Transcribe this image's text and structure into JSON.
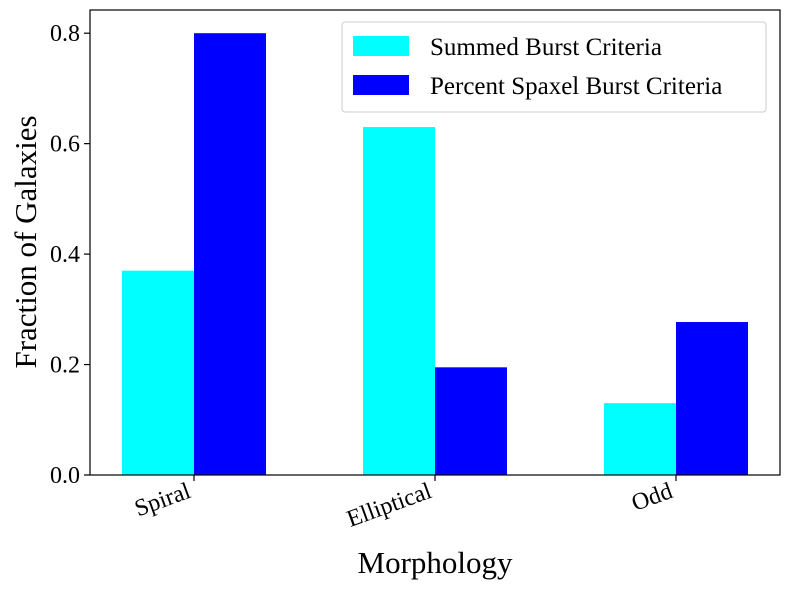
{
  "chart_data": {
    "type": "bar",
    "categories": [
      "Spiral",
      "Elliptical",
      "Odd"
    ],
    "series": [
      {
        "name": "Summed Burst Criteria",
        "color": "#00ffff",
        "values": [
          0.37,
          0.63,
          0.13
        ]
      },
      {
        "name": "Percent Spaxel Burst Criteria",
        "color": "#0000ff",
        "values": [
          0.8,
          0.195,
          0.277
        ]
      }
    ],
    "xlabel": "Morphology",
    "ylabel": "Fraction of Galaxies",
    "ylim": [
      0,
      0.842
    ],
    "yticks": [
      0.0,
      0.2,
      0.4,
      0.6,
      0.8
    ],
    "ytick_labels": [
      "0.0",
      "0.2",
      "0.4",
      "0.6",
      "0.8"
    ],
    "grid": false,
    "legend_position": "upper right"
  }
}
